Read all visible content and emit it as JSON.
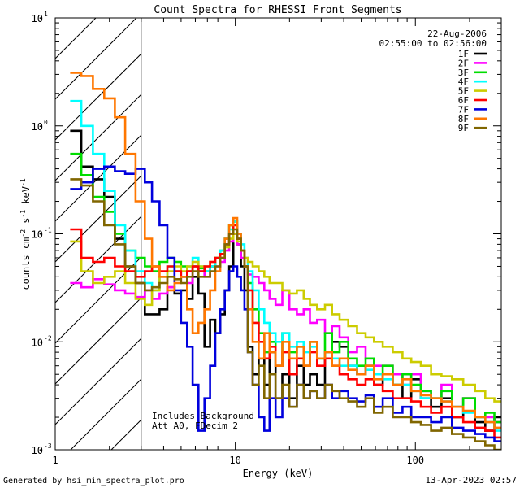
{
  "chart_data": {
    "type": "line",
    "title": "Count Spectra for RHESSI Front Segments",
    "xlabel": "Energy (keV)",
    "ylabel_parts": [
      "counts cm",
      "-2",
      " s",
      "-1",
      " keV",
      "-1"
    ],
    "xscale": "log",
    "yscale": "log",
    "xlim": [
      1,
      300
    ],
    "ylim": [
      0.001,
      10
    ],
    "x_ticks": [
      {
        "value": 1,
        "label": "1"
      },
      {
        "value": 10,
        "label": "10"
      },
      {
        "value": 100,
        "label": "100"
      }
    ],
    "y_ticks": [
      {
        "value": 0.001,
        "base": "10",
        "exp": "-3"
      },
      {
        "value": 0.01,
        "base": "10",
        "exp": "-2"
      },
      {
        "value": 0.1,
        "base": "10",
        "exp": "-1"
      },
      {
        "value": 1,
        "base": "10",
        "exp": "0"
      },
      {
        "value": 10,
        "base": "10",
        "exp": "1"
      }
    ],
    "date": "22-Aug-2006",
    "time_range": "02:55:00 to 02:56:00",
    "annotations": [
      "Includes Background",
      "Att A0, FDecim 2"
    ],
    "hatched_region_max_energy": 3,
    "footer_left": "Generated by hsi_min_spectra_plot.pro",
    "footer_right": "13-Apr-2023 02:57",
    "series": [
      {
        "name": "1F",
        "color": "#000000",
        "x": [
          1.3,
          1.5,
          1.75,
          2.0,
          2.3,
          2.6,
          3.0,
          3.3,
          3.6,
          4.0,
          4.4,
          4.8,
          5.2,
          5.6,
          6.0,
          6.5,
          7.0,
          7.5,
          8.0,
          8.5,
          9.0,
          9.5,
          10.0,
          10.5,
          11.0,
          11.5,
          12.0,
          13.0,
          14.0,
          15.0,
          16.0,
          17.5,
          19.0,
          21.0,
          23.0,
          25.0,
          27.0,
          30.0,
          33.0,
          36.0,
          40.0,
          45.0,
          50.0,
          56.0,
          62.0,
          70.0,
          80.0,
          90.0,
          100.0,
          115.0,
          130.0,
          150.0,
          170.0,
          200.0,
          230.0,
          260.0,
          290.0
        ],
        "y": [
          0.9,
          0.42,
          0.32,
          0.22,
          0.09,
          0.05,
          0.035,
          0.018,
          0.018,
          0.02,
          0.032,
          0.028,
          0.03,
          0.025,
          0.04,
          0.028,
          0.009,
          0.016,
          0.012,
          0.018,
          0.03,
          0.05,
          0.1,
          0.08,
          0.05,
          0.03,
          0.009,
          0.005,
          0.007,
          0.004,
          0.008,
          0.003,
          0.005,
          0.003,
          0.006,
          0.004,
          0.005,
          0.004,
          0.008,
          0.01,
          0.009,
          0.006,
          0.005,
          0.006,
          0.004,
          0.005,
          0.004,
          0.003,
          0.0045,
          0.003,
          0.0025,
          0.003,
          0.002,
          0.003,
          0.0018,
          0.0015,
          0.002
        ]
      },
      {
        "name": "2F",
        "color": "#ff00ff",
        "x": [
          1.3,
          1.5,
          1.75,
          2.0,
          2.3,
          2.6,
          3.0,
          3.3,
          3.6,
          4.0,
          4.4,
          4.8,
          5.2,
          5.6,
          6.0,
          6.5,
          7.0,
          7.5,
          8.0,
          8.5,
          9.0,
          9.5,
          10.0,
          10.5,
          11.0,
          11.5,
          12.0,
          13.0,
          14.0,
          15.0,
          16.0,
          17.5,
          19.0,
          21.0,
          23.0,
          25.0,
          27.0,
          30.0,
          33.0,
          36.0,
          40.0,
          45.0,
          50.0,
          56.0,
          62.0,
          70.0,
          80.0,
          90.0,
          100.0,
          115.0,
          130.0,
          150.0,
          170.0,
          200.0,
          230.0,
          260.0,
          290.0
        ],
        "y": [
          0.035,
          0.032,
          0.038,
          0.034,
          0.03,
          0.028,
          0.026,
          0.03,
          0.025,
          0.028,
          0.032,
          0.045,
          0.04,
          0.035,
          0.05,
          0.045,
          0.04,
          0.05,
          0.05,
          0.055,
          0.07,
          0.085,
          0.1,
          0.08,
          0.06,
          0.05,
          0.042,
          0.04,
          0.035,
          0.03,
          0.025,
          0.022,
          0.03,
          0.02,
          0.018,
          0.02,
          0.015,
          0.016,
          0.012,
          0.014,
          0.011,
          0.008,
          0.009,
          0.007,
          0.006,
          0.006,
          0.005,
          0.004,
          0.005,
          0.0035,
          0.003,
          0.004,
          0.0025,
          0.003,
          0.002,
          0.002,
          0.0018
        ]
      },
      {
        "name": "3F",
        "color": "#00dd00",
        "x": [
          1.3,
          1.5,
          1.75,
          2.0,
          2.3,
          2.6,
          3.0,
          3.3,
          3.6,
          4.0,
          4.4,
          4.8,
          5.2,
          5.6,
          6.0,
          6.5,
          7.0,
          7.5,
          8.0,
          8.5,
          9.0,
          9.5,
          10.0,
          10.5,
          11.0,
          11.5,
          12.0,
          13.0,
          14.0,
          15.0,
          16.0,
          17.5,
          19.0,
          21.0,
          23.0,
          25.0,
          27.0,
          30.0,
          33.0,
          36.0,
          40.0,
          45.0,
          50.0,
          56.0,
          62.0,
          70.0,
          80.0,
          90.0,
          100.0,
          115.0,
          130.0,
          150.0,
          170.0,
          200.0,
          230.0,
          260.0,
          290.0
        ],
        "y": [
          0.55,
          0.35,
          0.22,
          0.16,
          0.1,
          0.07,
          0.06,
          0.05,
          0.045,
          0.055,
          0.06,
          0.055,
          0.05,
          0.045,
          0.05,
          0.048,
          0.045,
          0.05,
          0.06,
          0.07,
          0.09,
          0.12,
          0.13,
          0.1,
          0.07,
          0.05,
          0.035,
          0.02,
          0.012,
          0.008,
          0.01,
          0.006,
          0.012,
          0.008,
          0.009,
          0.006,
          0.01,
          0.007,
          0.012,
          0.008,
          0.01,
          0.007,
          0.006,
          0.007,
          0.005,
          0.006,
          0.004,
          0.005,
          0.004,
          0.0035,
          0.003,
          0.0035,
          0.0025,
          0.003,
          0.002,
          0.0022,
          0.0018
        ]
      },
      {
        "name": "4F",
        "color": "#00ffff",
        "x": [
          1.3,
          1.5,
          1.75,
          2.0,
          2.3,
          2.6,
          3.0,
          3.3,
          3.6,
          4.0,
          4.4,
          4.8,
          5.2,
          5.6,
          6.0,
          6.5,
          7.0,
          7.5,
          8.0,
          8.5,
          9.0,
          9.5,
          10.0,
          10.5,
          11.0,
          11.5,
          12.0,
          13.0,
          14.0,
          15.0,
          16.0,
          17.5,
          19.0,
          21.0,
          23.0,
          25.0,
          27.0,
          30.0,
          33.0,
          36.0,
          40.0,
          45.0,
          50.0,
          56.0,
          62.0,
          70.0,
          80.0,
          90.0,
          100.0,
          115.0,
          130.0,
          150.0,
          170.0,
          200.0,
          230.0,
          260.0,
          290.0
        ],
        "y": [
          1.7,
          1.0,
          0.55,
          0.25,
          0.12,
          0.07,
          0.045,
          0.035,
          0.03,
          0.04,
          0.05,
          0.045,
          0.04,
          0.05,
          0.06,
          0.05,
          0.045,
          0.05,
          0.06,
          0.07,
          0.09,
          0.11,
          0.13,
          0.1,
          0.08,
          0.06,
          0.045,
          0.03,
          0.02,
          0.015,
          0.012,
          0.01,
          0.012,
          0.009,
          0.01,
          0.008,
          0.009,
          0.007,
          0.008,
          0.007,
          0.006,
          0.006,
          0.005,
          0.0055,
          0.005,
          0.0045,
          0.004,
          0.004,
          0.0035,
          0.003,
          0.003,
          0.0028,
          0.0025,
          0.0022,
          0.002,
          0.0018,
          0.0015
        ]
      },
      {
        "name": "5F",
        "color": "#cccc00",
        "x": [
          1.3,
          1.5,
          1.75,
          2.0,
          2.3,
          2.6,
          3.0,
          3.3,
          3.6,
          4.0,
          4.4,
          4.8,
          5.2,
          5.6,
          6.0,
          6.5,
          7.0,
          7.5,
          8.0,
          8.5,
          9.0,
          9.5,
          10.0,
          10.5,
          11.0,
          11.5,
          12.0,
          13.0,
          14.0,
          15.0,
          16.0,
          17.5,
          19.0,
          21.0,
          23.0,
          25.0,
          27.0,
          30.0,
          33.0,
          36.0,
          40.0,
          45.0,
          50.0,
          56.0,
          62.0,
          70.0,
          80.0,
          90.0,
          100.0,
          115.0,
          130.0,
          150.0,
          170.0,
          200.0,
          230.0,
          260.0,
          290.0
        ],
        "y": [
          0.085,
          0.045,
          0.035,
          0.04,
          0.045,
          0.035,
          0.025,
          0.022,
          0.03,
          0.04,
          0.045,
          0.05,
          0.045,
          0.05,
          0.055,
          0.05,
          0.05,
          0.055,
          0.06,
          0.065,
          0.075,
          0.09,
          0.1,
          0.085,
          0.07,
          0.06,
          0.055,
          0.05,
          0.045,
          0.04,
          0.035,
          0.035,
          0.03,
          0.028,
          0.03,
          0.025,
          0.022,
          0.02,
          0.022,
          0.018,
          0.016,
          0.014,
          0.012,
          0.011,
          0.01,
          0.009,
          0.008,
          0.007,
          0.0065,
          0.006,
          0.005,
          0.0048,
          0.0045,
          0.004,
          0.0035,
          0.003,
          0.0028
        ]
      },
      {
        "name": "6F",
        "color": "#ff0000",
        "x": [
          1.3,
          1.5,
          1.75,
          2.0,
          2.3,
          2.6,
          3.0,
          3.3,
          3.6,
          4.0,
          4.4,
          4.8,
          5.2,
          5.6,
          6.0,
          6.5,
          7.0,
          7.5,
          8.0,
          8.5,
          9.0,
          9.5,
          10.0,
          10.5,
          11.0,
          11.5,
          12.0,
          13.0,
          14.0,
          15.0,
          16.0,
          17.5,
          19.0,
          21.0,
          23.0,
          25.0,
          27.0,
          30.0,
          33.0,
          36.0,
          40.0,
          45.0,
          50.0,
          56.0,
          62.0,
          70.0,
          80.0,
          90.0,
          100.0,
          115.0,
          130.0,
          150.0,
          170.0,
          200.0,
          230.0,
          260.0,
          290.0
        ],
        "y": [
          0.11,
          0.06,
          0.055,
          0.06,
          0.05,
          0.045,
          0.04,
          0.045,
          0.05,
          0.045,
          0.05,
          0.045,
          0.04,
          0.045,
          0.05,
          0.045,
          0.05,
          0.055,
          0.06,
          0.065,
          0.08,
          0.1,
          0.12,
          0.09,
          0.07,
          0.05,
          0.03,
          0.015,
          0.01,
          0.007,
          0.009,
          0.006,
          0.008,
          0.005,
          0.007,
          0.006,
          0.008,
          0.006,
          0.007,
          0.006,
          0.005,
          0.0045,
          0.004,
          0.0045,
          0.004,
          0.0035,
          0.003,
          0.003,
          0.0028,
          0.0025,
          0.0022,
          0.0025,
          0.002,
          0.0018,
          0.0016,
          0.0015,
          0.0013
        ]
      },
      {
        "name": "7F",
        "color": "#0000dd",
        "x": [
          1.3,
          1.5,
          1.75,
          2.0,
          2.3,
          2.6,
          3.0,
          3.3,
          3.6,
          4.0,
          4.4,
          4.8,
          5.2,
          5.6,
          6.0,
          6.5,
          7.0,
          7.5,
          8.0,
          8.5,
          9.0,
          9.5,
          10.0,
          10.5,
          11.0,
          11.5,
          12.0,
          13.0,
          14.0,
          15.0,
          16.0,
          17.5,
          19.0,
          21.0,
          23.0,
          25.0,
          27.0,
          30.0,
          33.0,
          36.0,
          40.0,
          45.0,
          50.0,
          56.0,
          62.0,
          70.0,
          80.0,
          90.0,
          100.0,
          115.0,
          130.0,
          150.0,
          170.0,
          200.0,
          230.0,
          260.0,
          290.0
        ],
        "y": [
          0.26,
          0.3,
          0.4,
          0.42,
          0.38,
          0.36,
          0.4,
          0.3,
          0.2,
          0.12,
          0.06,
          0.03,
          0.015,
          0.009,
          0.004,
          0.0015,
          0.003,
          0.006,
          0.012,
          0.02,
          0.03,
          0.045,
          0.05,
          0.04,
          0.03,
          0.02,
          0.008,
          0.004,
          0.002,
          0.0015,
          0.003,
          0.002,
          0.003,
          0.0025,
          0.004,
          0.003,
          0.0035,
          0.003,
          0.004,
          0.003,
          0.0035,
          0.003,
          0.0028,
          0.0032,
          0.0025,
          0.003,
          0.0022,
          0.0025,
          0.002,
          0.002,
          0.0018,
          0.002,
          0.0016,
          0.0015,
          0.0014,
          0.0013,
          0.0012
        ]
      },
      {
        "name": "8F",
        "color": "#ff7700",
        "x": [
          1.3,
          1.5,
          1.75,
          2.0,
          2.3,
          2.6,
          3.0,
          3.3,
          3.6,
          4.0,
          4.4,
          4.8,
          5.2,
          5.6,
          6.0,
          6.5,
          7.0,
          7.5,
          8.0,
          8.5,
          9.0,
          9.5,
          10.0,
          10.5,
          11.0,
          11.5,
          12.0,
          13.0,
          14.0,
          15.0,
          16.0,
          17.5,
          19.0,
          21.0,
          23.0,
          25.0,
          27.0,
          30.0,
          33.0,
          36.0,
          40.0,
          45.0,
          50.0,
          56.0,
          62.0,
          70.0,
          80.0,
          90.0,
          100.0,
          115.0,
          130.0,
          150.0,
          170.0,
          200.0,
          230.0,
          260.0,
          290.0
        ],
        "y": [
          3.1,
          2.9,
          2.2,
          1.8,
          1.2,
          0.55,
          0.2,
          0.09,
          0.05,
          0.04,
          0.03,
          0.035,
          0.04,
          0.02,
          0.012,
          0.015,
          0.02,
          0.03,
          0.045,
          0.06,
          0.09,
          0.12,
          0.14,
          0.1,
          0.07,
          0.05,
          0.02,
          0.01,
          0.007,
          0.012,
          0.008,
          0.006,
          0.01,
          0.007,
          0.009,
          0.006,
          0.01,
          0.007,
          0.008,
          0.006,
          0.007,
          0.0055,
          0.005,
          0.006,
          0.0045,
          0.005,
          0.004,
          0.0045,
          0.0035,
          0.0032,
          0.003,
          0.0028,
          0.0025,
          0.0023,
          0.002,
          0.0018,
          0.0016
        ]
      },
      {
        "name": "9F",
        "color": "#806600",
        "x": [
          1.3,
          1.5,
          1.75,
          2.0,
          2.3,
          2.6,
          3.0,
          3.3,
          3.6,
          4.0,
          4.4,
          4.8,
          5.2,
          5.6,
          6.0,
          6.5,
          7.0,
          7.5,
          8.0,
          8.5,
          9.0,
          9.5,
          10.0,
          10.5,
          11.0,
          11.5,
          12.0,
          13.0,
          14.0,
          15.0,
          16.0,
          17.5,
          19.0,
          21.0,
          23.0,
          25.0,
          27.0,
          30.0,
          33.0,
          36.0,
          40.0,
          45.0,
          50.0,
          56.0,
          62.0,
          70.0,
          80.0,
          90.0,
          100.0,
          115.0,
          130.0,
          150.0,
          170.0,
          200.0,
          230.0,
          260.0,
          290.0
        ],
        "y": [
          0.32,
          0.28,
          0.2,
          0.12,
          0.08,
          0.05,
          0.035,
          0.03,
          0.032,
          0.035,
          0.04,
          0.038,
          0.035,
          0.04,
          0.045,
          0.04,
          0.04,
          0.045,
          0.05,
          0.06,
          0.08,
          0.1,
          0.11,
          0.09,
          0.07,
          0.05,
          0.008,
          0.004,
          0.006,
          0.003,
          0.005,
          0.003,
          0.004,
          0.0025,
          0.004,
          0.003,
          0.0035,
          0.003,
          0.004,
          0.0035,
          0.003,
          0.0028,
          0.0025,
          0.003,
          0.0022,
          0.0025,
          0.002,
          0.002,
          0.0018,
          0.0017,
          0.0015,
          0.0016,
          0.0014,
          0.0013,
          0.0012,
          0.0011,
          0.001
        ]
      }
    ]
  }
}
